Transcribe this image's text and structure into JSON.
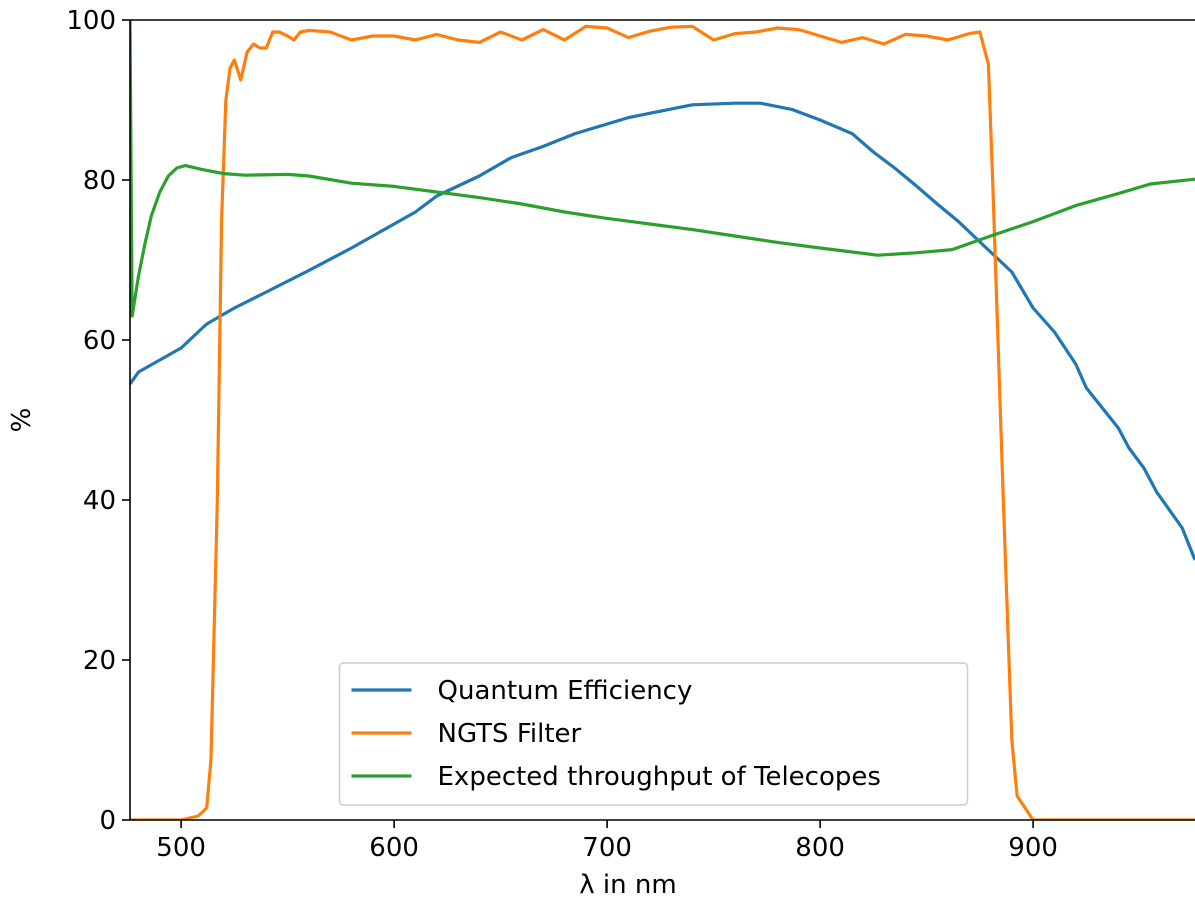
{
  "chart_data": {
    "type": "line",
    "xlabel": "λ in nm",
    "ylabel": "%",
    "xlim": [
      476,
      976
    ],
    "ylim": [
      0,
      100
    ],
    "xticks": [
      500,
      600,
      700,
      800,
      900
    ],
    "yticks": [
      0,
      20,
      40,
      60,
      80,
      100
    ],
    "legend": "lower center",
    "series": [
      {
        "name": "Quantum Efficiency",
        "color": "#1f77b4",
        "x": [
          476,
          480,
          500,
          512,
          525,
          540,
          560,
          580,
          600,
          610,
          620,
          640,
          655,
          670,
          685,
          700,
          710,
          725,
          740,
          760,
          772,
          787,
          800,
          815,
          825,
          835,
          845,
          855,
          865,
          880,
          890,
          900,
          910,
          920,
          925,
          940,
          945,
          952,
          958,
          970,
          976
        ],
        "values": [
          54.5,
          56,
          59,
          62,
          64,
          66,
          68.7,
          71.5,
          74.5,
          76,
          78,
          80.5,
          82.8,
          84.2,
          85.8,
          87,
          87.8,
          88.6,
          89.4,
          89.6,
          89.6,
          88.8,
          87.5,
          85.8,
          83.5,
          81.5,
          79.3,
          77,
          74.8,
          71,
          68.5,
          64,
          61,
          57,
          54,
          49,
          46.5,
          44,
          41,
          36.5,
          32.5
        ]
      },
      {
        "name": "NGTS Filter",
        "color": "#ff7f0e",
        "x": [
          476,
          500,
          508,
          512,
          514,
          517,
          519,
          521,
          523,
          525,
          528,
          531,
          534,
          537,
          540,
          543,
          546,
          550,
          553,
          556,
          560,
          570,
          580,
          590,
          600,
          610,
          620,
          630,
          640,
          650,
          660,
          670,
          680,
          690,
          700,
          710,
          720,
          730,
          740,
          750,
          760,
          770,
          780,
          790,
          800,
          810,
          820,
          830,
          840,
          850,
          860,
          870,
          875,
          879,
          881,
          886,
          890,
          892.5,
          900,
          976
        ],
        "values": [
          0,
          0,
          0.5,
          1.5,
          7.5,
          40,
          75,
          90,
          94,
          95,
          92.5,
          96,
          97,
          96.5,
          96.5,
          98.5,
          98.5,
          98,
          97.5,
          98.5,
          98.7,
          98.5,
          97.5,
          98,
          98,
          97.5,
          98.2,
          97.5,
          97.2,
          98.5,
          97.5,
          98.8,
          97.5,
          99.2,
          99,
          97.8,
          98.6,
          99.1,
          99.2,
          97.5,
          98.3,
          98.5,
          99,
          98.8,
          98,
          97.2,
          97.8,
          97,
          98.2,
          98,
          97.5,
          98.3,
          98.5,
          94.5,
          80,
          40,
          10,
          3,
          0,
          0
        ]
      },
      {
        "name": "Expected throughput of Telecopes",
        "color": "#2ca02c",
        "x": [
          476,
          477,
          480,
          483,
          486,
          490,
          494,
          498,
          502,
          510,
          520,
          530,
          550,
          560,
          580,
          600,
          620,
          640,
          660,
          680,
          700,
          720,
          740,
          760,
          780,
          800,
          815,
          827,
          845,
          862,
          880,
          900,
          920,
          940,
          955,
          976
        ],
        "values": [
          100,
          63,
          68,
          72,
          75.5,
          78.5,
          80.5,
          81.5,
          81.8,
          81.3,
          80.8,
          80.6,
          80.7,
          80.5,
          79.6,
          79.2,
          78.5,
          77.8,
          77,
          76,
          75.2,
          74.5,
          73.8,
          73,
          72.2,
          71.5,
          71,
          70.6,
          70.9,
          71.3,
          73,
          74.8,
          76.8,
          78.3,
          79.5,
          80.1
        ]
      }
    ]
  }
}
